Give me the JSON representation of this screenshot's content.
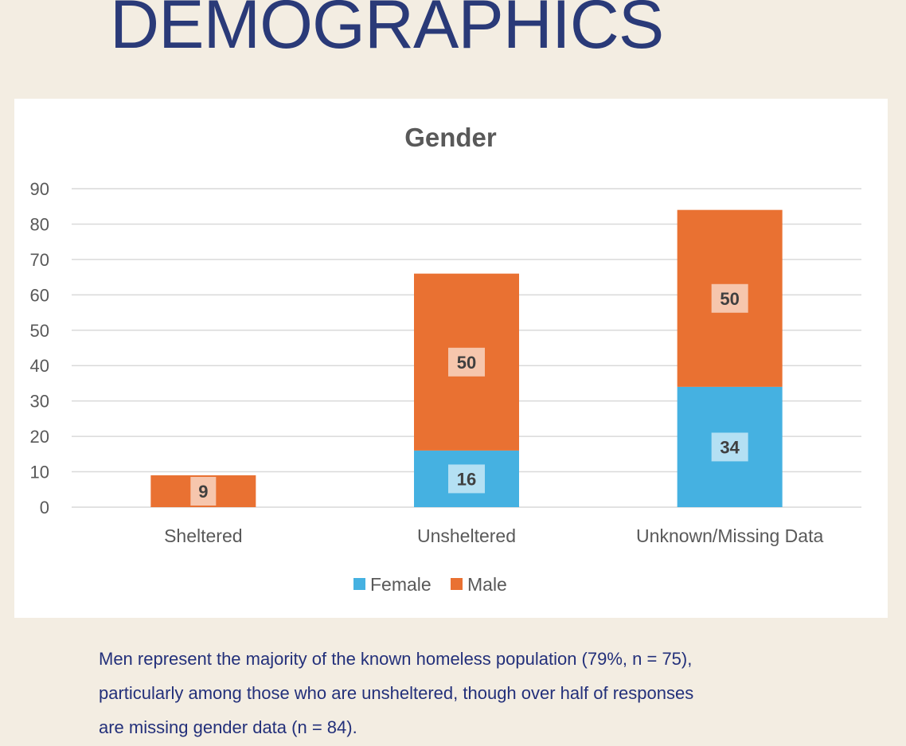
{
  "page": {
    "title": "DEMOGRAPHICS",
    "caption_lines": [
      "Men represent the majority of the known homeless population (79%, n = 75),",
      "particularly among those who are unsheltered, though over half of responses",
      "are missing gender data (n = 84)."
    ]
  },
  "colors": {
    "title": "#2a3a78",
    "caption": "#23307a",
    "background": "#f3ede2",
    "female": "#45b1e1",
    "male": "#e97132"
  },
  "chart_data": {
    "type": "bar",
    "stacked": true,
    "title": "Gender",
    "xlabel": "",
    "ylabel": "",
    "categories": [
      "Sheltered",
      "Unsheltered",
      "Unknown/Missing Data"
    ],
    "series": [
      {
        "name": "Female",
        "color": "#45b1e1",
        "values": [
          0,
          16,
          34
        ]
      },
      {
        "name": "Male",
        "color": "#e97132",
        "values": [
          9,
          50,
          50
        ]
      }
    ],
    "ylim": [
      0,
      90
    ],
    "yticks": [
      0,
      10,
      20,
      30,
      40,
      50,
      60,
      70,
      80,
      90
    ],
    "grid": true,
    "legend": "bottom",
    "data_labels": true
  }
}
